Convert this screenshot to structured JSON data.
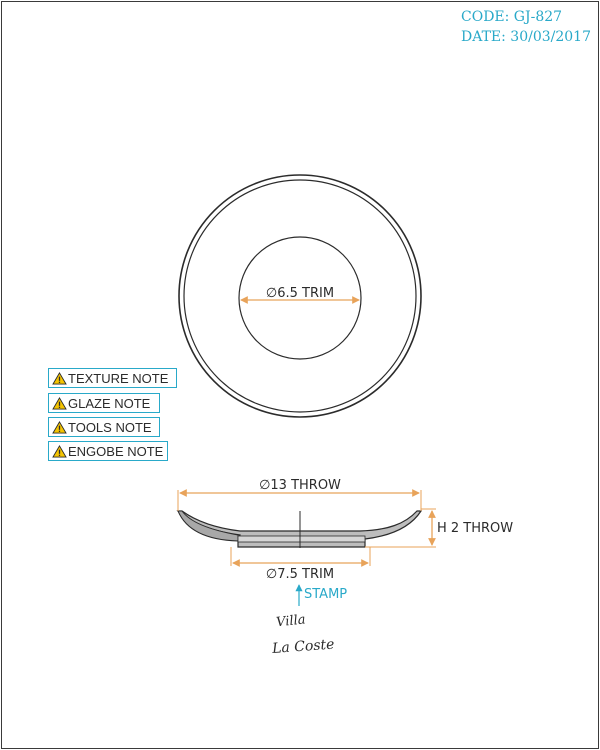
{
  "header": {
    "code": "CODE: GJ-827",
    "date": "DATE: 30/03/2017"
  },
  "notes": [
    {
      "label": "TEXTURE NOTE",
      "icon": "warning-icon"
    },
    {
      "label": "GLAZE NOTE",
      "icon": "warning-icon"
    },
    {
      "label": "TOOLS NOTE",
      "icon": "warning-icon"
    },
    {
      "label": "ENGOBE NOTE",
      "icon": "warning-icon"
    }
  ],
  "top_view": {
    "inner_dimension": "∅6.5 TRIM"
  },
  "side_view": {
    "width_dimension": "∅13 THROW",
    "height_dimension": "H 2 THROW",
    "foot_dimension": "∅7.5 TRIM",
    "stamp_label": "STAMP"
  },
  "signature": {
    "line1": "Villa",
    "line2": "La Coste"
  },
  "colors": {
    "accent": "#29a9c9",
    "dimension": "#e8a35a",
    "line": "#2b2b2b",
    "warning_fill": "#f5c400"
  }
}
